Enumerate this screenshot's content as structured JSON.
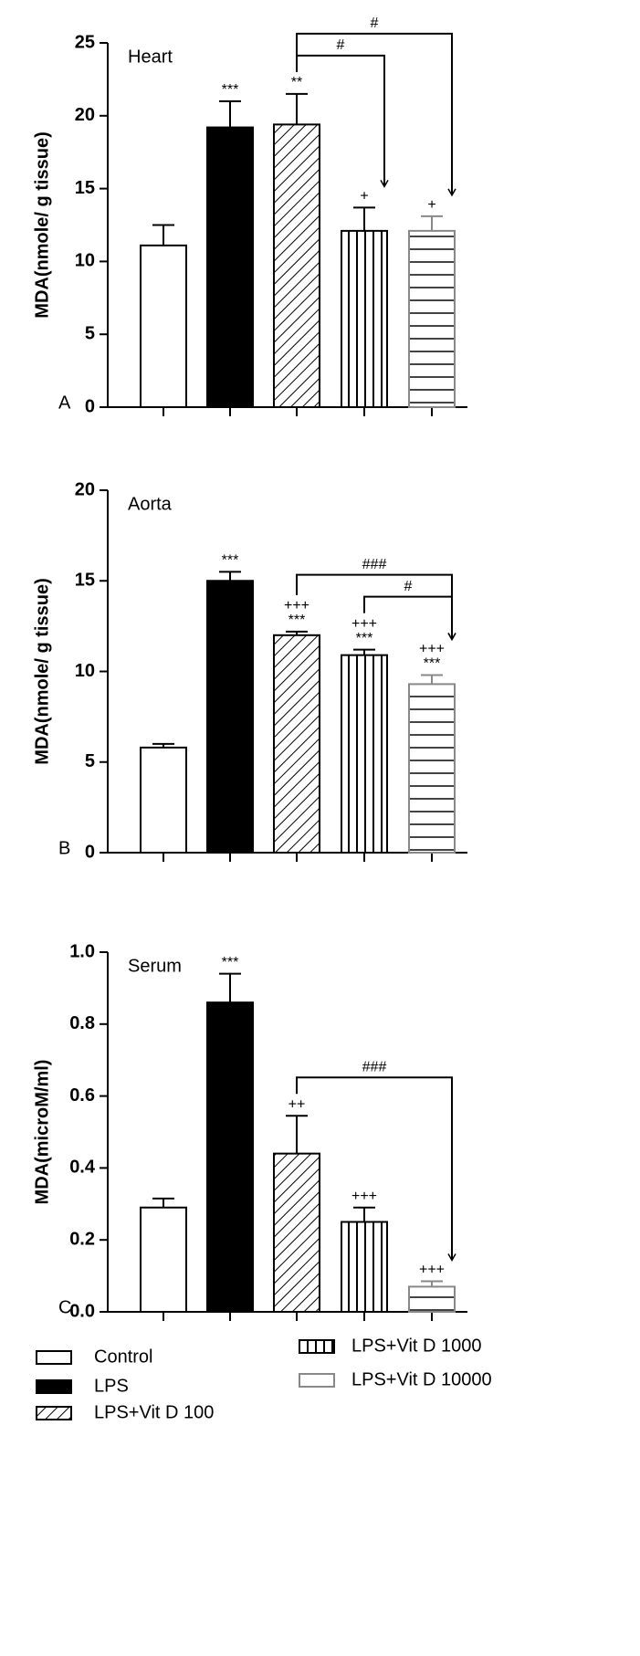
{
  "chart_data": [
    {
      "type": "bar",
      "title": "Heart",
      "panel": "A",
      "ylabel": "MDA(nmole/ g tissue)",
      "values": [
        11.1,
        19.2,
        19.4,
        12.1,
        12.1
      ],
      "errors": [
        1.4,
        1.8,
        2.1,
        1.6,
        1.0
      ],
      "labels": [
        null,
        "***",
        "**",
        "+",
        "+"
      ],
      "labels_top": [
        null,
        null,
        null,
        null,
        null
      ],
      "brackets": [
        {
          "from": 2,
          "to": 3,
          "text": "#"
        },
        {
          "from": 2,
          "to": 4,
          "text": "#"
        }
      ],
      "ylim": [
        0,
        25
      ],
      "yticks": [
        0,
        5,
        10,
        15,
        20,
        25
      ]
    },
    {
      "type": "bar",
      "title": "Aorta",
      "panel": "B",
      "ylabel": "MDA(nmole/ g tissue)",
      "values": [
        5.8,
        15.0,
        12.0,
        10.9,
        9.3
      ],
      "errors": [
        0.2,
        0.5,
        0.2,
        0.3,
        0.5
      ],
      "labels": [
        null,
        "***",
        "***",
        "***",
        "***"
      ],
      "labels_top": [
        null,
        null,
        "+++",
        "+++",
        "+++"
      ],
      "brackets": [
        {
          "from": 3,
          "to": 4,
          "text": "#"
        },
        {
          "from": 2,
          "to": 4,
          "text": "###"
        }
      ],
      "ylim": [
        0,
        20
      ],
      "yticks": [
        0,
        5,
        10,
        15,
        20
      ]
    },
    {
      "type": "bar",
      "title": "Serum",
      "panel": "C",
      "ylabel": "MDA(microM/ml)",
      "values": [
        0.29,
        0.86,
        0.44,
        0.25,
        0.07
      ],
      "errors": [
        0.025,
        0.08,
        0.105,
        0.04,
        0.015
      ],
      "labels": [
        null,
        "***",
        "++",
        "+++",
        "+++"
      ],
      "labels_top": [
        null,
        null,
        null,
        null,
        null
      ],
      "brackets": [
        {
          "from": 2,
          "to": 4,
          "text": "###"
        }
      ],
      "ylim": [
        0,
        1
      ],
      "yticks": [
        {
          "value": 0,
          "label": "0.0"
        },
        0.2,
        0.4,
        0.6,
        0.8,
        {
          "value": 1,
          "label": "1.0"
        }
      ]
    }
  ],
  "legend": [
    {
      "name": "Control",
      "fill": "#ffffff",
      "stroke": "#000000"
    },
    {
      "name": "LPS",
      "fill": "#000000",
      "stroke": "#000000"
    },
    {
      "name": "LPS+Vit D 100",
      "fill": "url(#diag)",
      "stroke": "#000000"
    },
    {
      "name": "LPS+Vit D 1000",
      "fill": "url(#vert)",
      "stroke": "#000000"
    },
    {
      "name": "LPS+Vit D 10000",
      "fill": "url(#horiz)",
      "stroke": "#888888"
    }
  ]
}
